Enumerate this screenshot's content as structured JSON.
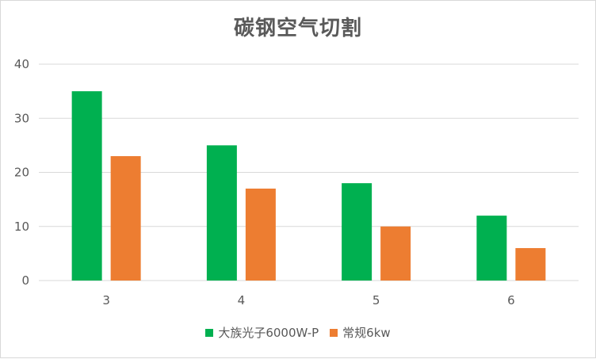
{
  "chart_data": {
    "type": "bar",
    "title": "碳钢空气切割",
    "categories": [
      "3",
      "4",
      "5",
      "6"
    ],
    "series": [
      {
        "name": "大族光子6000W-P",
        "values": [
          35,
          25,
          18,
          12
        ],
        "color": "#00b050"
      },
      {
        "name": "常规6kw",
        "values": [
          23,
          17,
          10,
          6
        ],
        "color": "#ed7d31"
      }
    ],
    "ylim": [
      0,
      40
    ],
    "yticks": [
      0,
      10,
      20,
      30,
      40
    ],
    "grid": true,
    "legend_position": "bottom"
  }
}
